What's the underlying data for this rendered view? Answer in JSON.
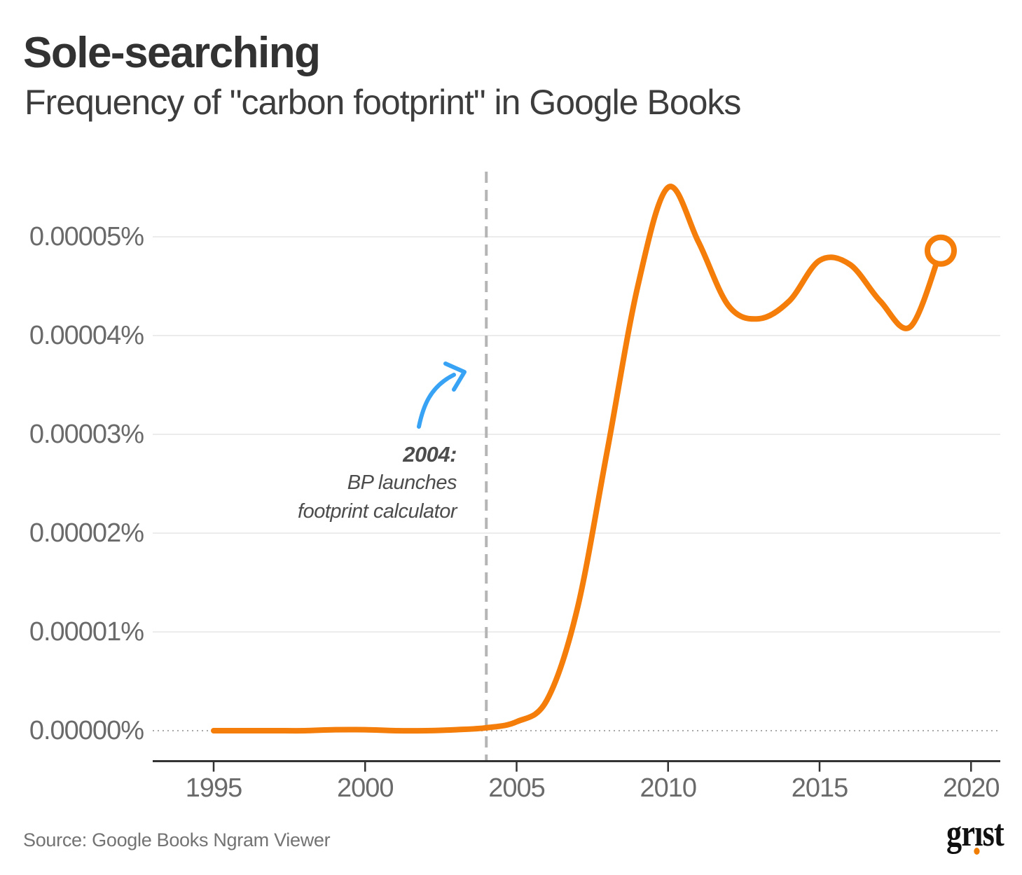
{
  "chart_data": {
    "type": "line",
    "title": "Sole-searching",
    "subtitle": "Frequency of \"carbon footprint\" in Google Books",
    "xlabel": "",
    "ylabel": "",
    "x": [
      1995,
      1996,
      1997,
      1998,
      1999,
      2000,
      2001,
      2002,
      2003,
      2004,
      2005,
      2006,
      2007,
      2008,
      2009,
      2010,
      2011,
      2012,
      2013,
      2014,
      2015,
      2016,
      2017,
      2018,
      2019
    ],
    "series": [
      {
        "name": "carbon footprint frequency (%)",
        "values": [
          0.0,
          0.0,
          0.0,
          0.0,
          1e-07,
          1e-07,
          0.0,
          0.0,
          1e-07,
          3e-07,
          9e-07,
          3.1e-06,
          1.23e-05,
          2.85e-05,
          4.5e-05,
          5.5e-05,
          4.95e-05,
          4.3e-05,
          4.17e-05,
          4.35e-05,
          4.76e-05,
          4.72e-05,
          4.35e-05,
          4.09e-05,
          4.86e-05
        ]
      }
    ],
    "xlim": [
      1993,
      2021
    ],
    "ylim": [
      0,
      5.7e-05
    ],
    "grid": "horizontal gridlines; zero line dotted",
    "legend_position": "none",
    "yticks": [
      {
        "label": "0.00005%",
        "value": 5e-05
      },
      {
        "label": "0.00004%",
        "value": 4e-05
      },
      {
        "label": "0.00003%",
        "value": 3e-05
      },
      {
        "label": "0.00002%",
        "value": 2e-05
      },
      {
        "label": "0.00001%",
        "value": 1e-05
      },
      {
        "label": "0.00000%",
        "value": 0.0
      }
    ],
    "xticks": [
      {
        "label": "1995",
        "value": 1995
      },
      {
        "label": "2000",
        "value": 2000
      },
      {
        "label": "2005",
        "value": 2005
      },
      {
        "label": "2010",
        "value": 2010
      },
      {
        "label": "2015",
        "value": 2015
      },
      {
        "label": "2020",
        "value": 2020
      }
    ],
    "event_line": {
      "x": 2004,
      "style": "dashed vertical"
    },
    "annotation": {
      "x": 2004,
      "lines": [
        "2004:",
        "BP launches",
        "footprint calculator"
      ],
      "arrow": "hand-drawn blue arrow pointing up-right at dashed line"
    },
    "end_marker": {
      "x": 2019,
      "value": 4.86e-05,
      "shape": "open-circle"
    }
  },
  "footer": {
    "source": "Source: Google Books Ngram Viewer",
    "logo": "grist"
  },
  "colors": {
    "line": "#F57D0A",
    "arrow": "#38A3F5",
    "event_line": "#B5B5B5",
    "logo_dot": "#F07D00",
    "grid": "#ECECEC",
    "zero_line": "#A8A8A8",
    "axis": "#333333"
  }
}
